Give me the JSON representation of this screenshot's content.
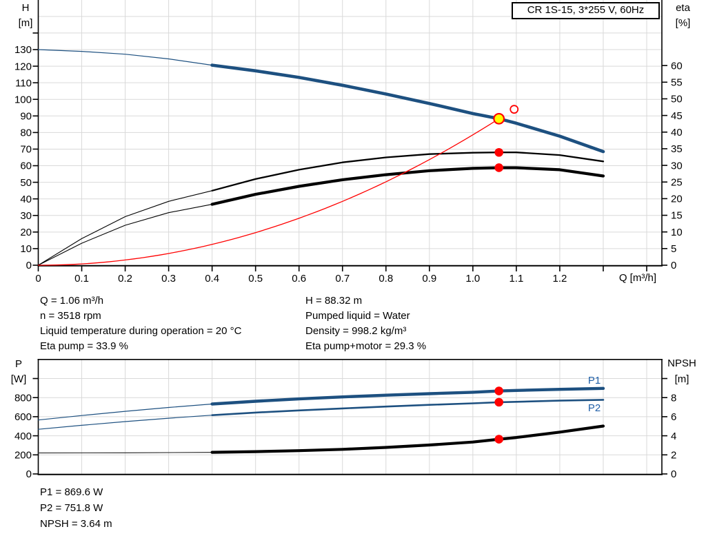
{
  "ui": {
    "title_box": "CR 1S-15, 3*255 V, 60Hz",
    "axis_titles": {
      "h": "H",
      "h_unit": "[m]",
      "eta": "eta",
      "eta_unit": "[%]",
      "q": "Q [m³/h]",
      "p": "P",
      "p_unit": "[W]",
      "npsh": "NPSH",
      "npsh_unit": "[m]"
    },
    "info_top_left": [
      "Q = 1.06 m³/h",
      "n = 3518 rpm",
      "Liquid temperature during operation = 20 °C",
      "Eta pump = 33.9 %"
    ],
    "info_top_right": [
      "H = 88.32 m",
      "Pumped liquid = Water",
      "Density = 998.2 kg/m³",
      "Eta pump+motor = 29.3 %"
    ],
    "info_bottom": [
      "P1 = 869.6 W",
      "P2 = 751.8 W",
      "NPSH = 3.64 m"
    ],
    "colors": {
      "curve_blue": "#1d5080",
      "label_blue": "#1f5fa8",
      "red": "#ff0000",
      "yellow": "#ffff00",
      "black": "#000000",
      "dark_gray": "#333333",
      "grid": "#d9d9d9"
    }
  },
  "chart_data": [
    {
      "name": "head-efficiency-chart",
      "type": "line",
      "axes": {
        "left": {
          "label": "H [m]",
          "range": [
            0,
            159.9
          ],
          "tick_values": [
            0,
            10,
            20,
            30,
            40,
            50,
            60,
            70,
            80,
            90,
            100,
            110,
            120,
            130,
            140
          ],
          "tick_labels": [
            "0",
            "10",
            "20",
            "30",
            "40",
            "50",
            "60",
            "70",
            "80",
            "90",
            "100",
            "110",
            "120",
            "130"
          ]
        },
        "right": {
          "label": "eta [%]",
          "range": [
            0,
            79.7
          ],
          "tick_values": [
            0,
            5,
            10,
            15,
            20,
            25,
            30,
            35,
            40,
            45,
            50,
            55,
            60
          ],
          "tick_labels": [
            "0",
            "5",
            "10",
            "15",
            "20",
            "25",
            "30",
            "35",
            "40",
            "45",
            "50",
            "55",
            "60"
          ]
        },
        "x": {
          "label": "Q [m³/h]",
          "range": [
            0,
            1.4349
          ],
          "tick_values": [
            0,
            0.1,
            0.2,
            0.3,
            0.4,
            0.5,
            0.6,
            0.7,
            0.8,
            0.9,
            1.0,
            1.1,
            1.2,
            1.3,
            1.4
          ],
          "tick_labels": [
            "0",
            "0.1",
            "0.2",
            "0.3",
            "0.4",
            "0.5",
            "0.6",
            "0.7",
            "0.8",
            "0.9",
            "1.0",
            "1.1",
            "1.2"
          ]
        }
      },
      "series": [
        {
          "name": "head-curve-thin",
          "axis": "left",
          "color": "curve_blue",
          "width": 1.2,
          "points": [
            [
              0,
              130
            ],
            [
              0.1,
              128.9
            ],
            [
              0.2,
              127.2
            ],
            [
              0.3,
              124.4
            ],
            [
              0.4,
              120.6
            ]
          ]
        },
        {
          "name": "head-curve",
          "axis": "left",
          "color": "curve_blue",
          "width": 4.6,
          "points": [
            [
              0.4,
              120.6
            ],
            [
              0.5,
              117.2
            ],
            [
              0.6,
              113.2
            ],
            [
              0.7,
              108.5
            ],
            [
              0.8,
              103.2
            ],
            [
              0.9,
              97.5
            ],
            [
              1.0,
              91.4
            ],
            [
              1.06,
              88.32
            ],
            [
              1.1,
              85.6
            ],
            [
              1.2,
              77.8
            ],
            [
              1.3,
              68.5
            ]
          ]
        },
        {
          "name": "eta-pump-curve-thin",
          "axis": "right",
          "color": "black",
          "width": 1.1,
          "points": [
            [
              0,
              0
            ],
            [
              0.1,
              8
            ],
            [
              0.2,
              14.6
            ],
            [
              0.3,
              19.2
            ],
            [
              0.4,
              22.4
            ]
          ]
        },
        {
          "name": "eta-pump-curve",
          "axis": "right",
          "color": "black",
          "width": 2.3,
          "points": [
            [
              0.4,
              22.4
            ],
            [
              0.5,
              25.9
            ],
            [
              0.6,
              28.7
            ],
            [
              0.7,
              30.9
            ],
            [
              0.8,
              32.4
            ],
            [
              0.9,
              33.4
            ],
            [
              1.0,
              33.8
            ],
            [
              1.06,
              33.9
            ],
            [
              1.1,
              33.9
            ],
            [
              1.2,
              33.1
            ],
            [
              1.3,
              31.2
            ]
          ]
        },
        {
          "name": "eta-pump-motor-curve-thin",
          "axis": "right",
          "color": "black",
          "width": 1.1,
          "points": [
            [
              0,
              0
            ],
            [
              0.1,
              6.6
            ],
            [
              0.2,
              12
            ],
            [
              0.3,
              15.8
            ],
            [
              0.4,
              18.3
            ]
          ]
        },
        {
          "name": "eta-pump-motor-curve",
          "axis": "right",
          "color": "black",
          "width": 4.2,
          "points": [
            [
              0.4,
              18.3
            ],
            [
              0.5,
              21.3
            ],
            [
              0.6,
              23.7
            ],
            [
              0.7,
              25.7
            ],
            [
              0.8,
              27.2
            ],
            [
              0.9,
              28.4
            ],
            [
              1.0,
              29.1
            ],
            [
              1.06,
              29.3
            ],
            [
              1.1,
              29.3
            ],
            [
              1.2,
              28.7
            ],
            [
              1.3,
              26.8
            ]
          ]
        },
        {
          "name": "system-curve",
          "axis": "left",
          "color": "red",
          "width": 1.3,
          "formula": {
            "type": "power",
            "q_ref": 1.06,
            "v_ref": 88.32,
            "exp": 2,
            "q_from": 0,
            "q_to": 1.06
          }
        }
      ],
      "markers": [
        {
          "name": "duty-point",
          "axis": "left",
          "q": 1.06,
          "v": 88.32,
          "style": "duty",
          "interactable": true
        },
        {
          "name": "rated-point",
          "axis": "left",
          "q": 1.095,
          "v": 94,
          "style": "open",
          "interactable": false
        },
        {
          "name": "eta-pump-point",
          "axis": "right",
          "q": 1.06,
          "v": 33.9,
          "style": "dot",
          "interactable": false
        },
        {
          "name": "eta-pump-motor-point",
          "axis": "right",
          "q": 1.06,
          "v": 29.3,
          "style": "dot",
          "interactable": false
        }
      ]
    },
    {
      "name": "power-npsh-chart",
      "type": "line",
      "axes": {
        "left": {
          "label": "P [W]",
          "range": [
            0,
            1200
          ],
          "tick_values": [
            0,
            200,
            400,
            600,
            800,
            1000
          ],
          "tick_labels": [
            "0",
            "200",
            "400",
            "600",
            "800"
          ]
        },
        "right": {
          "label": "NPSH [m]",
          "range": [
            0,
            12
          ],
          "tick_values": [
            0,
            2,
            4,
            6,
            8,
            10
          ],
          "tick_labels": [
            "0",
            "2",
            "4",
            "6",
            "8"
          ]
        },
        "x": {
          "label": "",
          "range": [
            0,
            1.4349
          ],
          "tick_values": [
            0,
            0.1,
            0.2,
            0.3,
            0.4,
            0.5,
            0.6,
            0.7,
            0.8,
            0.9,
            1.0,
            1.1,
            1.2,
            1.3,
            1.4
          ],
          "tick_labels": []
        }
      },
      "curve_labels": [
        {
          "text": "P1"
        },
        {
          "text": "P2"
        }
      ],
      "series": [
        {
          "name": "p1-curve-thin",
          "axis": "left",
          "color": "curve_blue",
          "width": 1.2,
          "points": [
            [
              0,
              565
            ],
            [
              0.1,
              612
            ],
            [
              0.2,
              656
            ],
            [
              0.3,
              697
            ],
            [
              0.4,
              733
            ]
          ]
        },
        {
          "name": "p1-curve",
          "axis": "left",
          "color": "curve_blue",
          "width": 4.4,
          "points": [
            [
              0.4,
              733
            ],
            [
              0.5,
              762
            ],
            [
              0.6,
              786
            ],
            [
              0.7,
              807
            ],
            [
              0.8,
              825
            ],
            [
              0.9,
              841
            ],
            [
              1.0,
              856
            ],
            [
              1.06,
              869.6
            ],
            [
              1.1,
              875
            ],
            [
              1.2,
              887
            ],
            [
              1.3,
              897
            ]
          ]
        },
        {
          "name": "p2-curve-thin",
          "axis": "left",
          "color": "curve_blue",
          "width": 1.2,
          "points": [
            [
              0,
              468
            ],
            [
              0.1,
              510
            ],
            [
              0.2,
              549
            ],
            [
              0.3,
              584
            ],
            [
              0.4,
              616
            ]
          ]
        },
        {
          "name": "p2-curve",
          "axis": "left",
          "color": "curve_blue",
          "width": 2.6,
          "points": [
            [
              0.4,
              616
            ],
            [
              0.5,
              643
            ],
            [
              0.6,
              666
            ],
            [
              0.7,
              687
            ],
            [
              0.8,
              706
            ],
            [
              0.9,
              724
            ],
            [
              1.0,
              740
            ],
            [
              1.06,
              751.8
            ],
            [
              1.1,
              756
            ],
            [
              1.2,
              768
            ],
            [
              1.3,
              777
            ]
          ]
        },
        {
          "name": "npsh-curve-thin",
          "axis": "right",
          "color": "dark_gray",
          "width": 1.2,
          "points": [
            [
              0,
              2.2
            ],
            [
              0.2,
              2.21
            ],
            [
              0.4,
              2.27
            ]
          ]
        },
        {
          "name": "npsh-curve",
          "axis": "right",
          "color": "black",
          "width": 4.2,
          "points": [
            [
              0.4,
              2.27
            ],
            [
              0.5,
              2.34
            ],
            [
              0.6,
              2.44
            ],
            [
              0.7,
              2.58
            ],
            [
              0.8,
              2.78
            ],
            [
              0.9,
              3.03
            ],
            [
              1.0,
              3.34
            ],
            [
              1.06,
              3.64
            ],
            [
              1.1,
              3.82
            ],
            [
              1.2,
              4.38
            ],
            [
              1.3,
              5.02
            ]
          ]
        }
      ],
      "markers": [
        {
          "name": "p1-point",
          "axis": "left",
          "q": 1.06,
          "v": 869.6,
          "style": "dot",
          "interactable": false
        },
        {
          "name": "p2-point",
          "axis": "left",
          "q": 1.06,
          "v": 751.8,
          "style": "dot",
          "interactable": false
        },
        {
          "name": "npsh-point",
          "axis": "right",
          "q": 1.06,
          "v": 3.64,
          "style": "dot",
          "interactable": false
        }
      ]
    }
  ]
}
